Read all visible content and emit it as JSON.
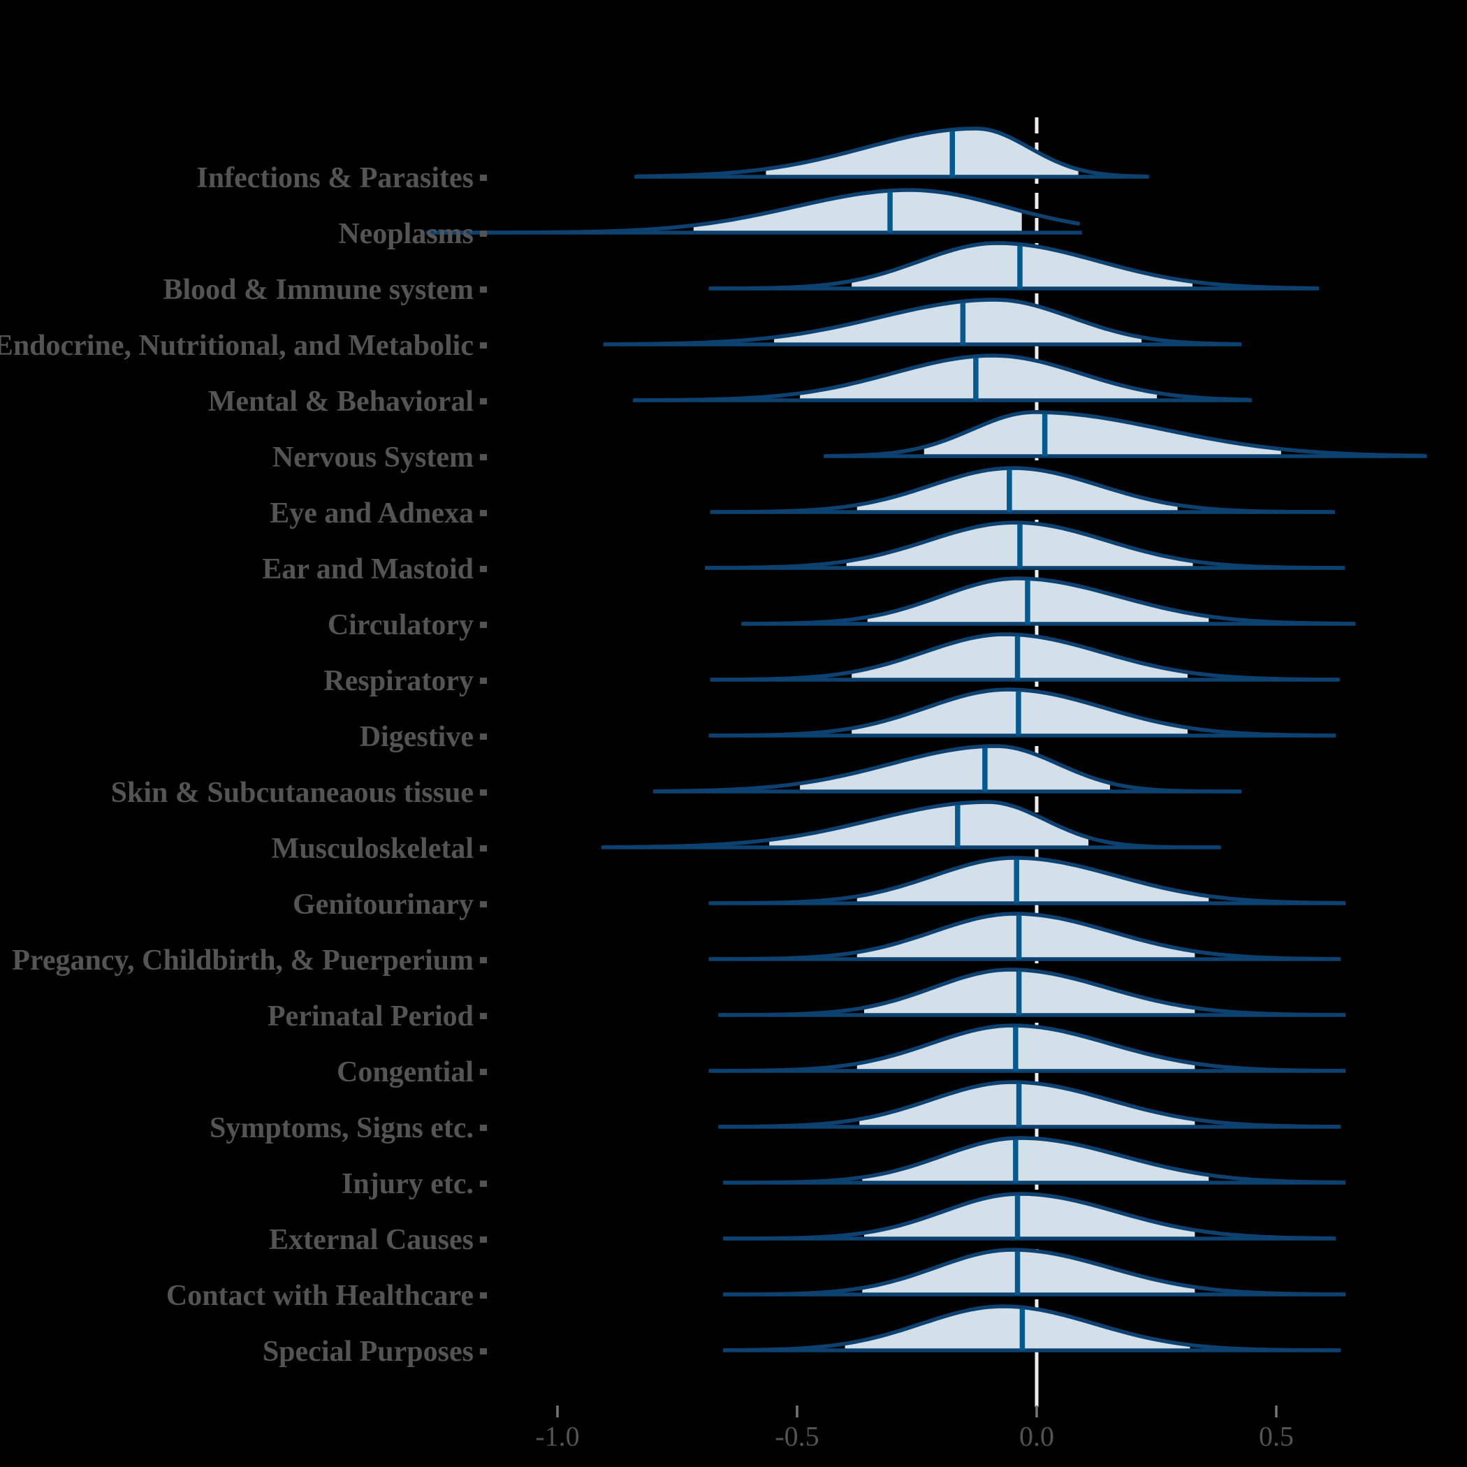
{
  "chart_data": {
    "type": "ridgeline_density",
    "title": "",
    "xlabel": "",
    "x_axis": {
      "ticks": [
        -1.0,
        -0.5,
        0.0,
        0.5
      ],
      "tick_labels": [
        "-1.0",
        "-0.5",
        "0.0",
        "0.5"
      ],
      "range": [
        -1.35,
        0.95
      ],
      "reference_line_x": 0.0
    },
    "legend": "none",
    "grid": "off",
    "series": [
      {
        "label": "Infections & Parasites",
        "median": -0.176,
        "q_lo": -0.565,
        "q_hi": 0.087,
        "range_lo": -0.835,
        "range_hi": 0.23,
        "mode": -0.126,
        "sigma_l": 0.23,
        "sigma_r": 0.11,
        "peak": 69
      },
      {
        "label": "Neoplasms",
        "median": -0.306,
        "q_lo": -0.716,
        "q_hi": -0.031,
        "range_lo": -1.27,
        "range_hi": 0.09,
        "mode": -0.265,
        "sigma_l": 0.24,
        "sigma_r": 0.2,
        "peak": 61
      },
      {
        "label": "Blood & Immune system",
        "median": -0.035,
        "q_lo": -0.386,
        "q_hi": 0.325,
        "range_lo": -0.68,
        "range_hi": 0.585,
        "mode": -0.083,
        "sigma_l": 0.16,
        "sigma_r": 0.21,
        "peak": 65
      },
      {
        "label": "Endocrine, Nutritional, and Metabolic",
        "median": -0.154,
        "q_lo": -0.548,
        "q_hi": 0.219,
        "range_lo": -0.9,
        "range_hi": 0.423,
        "mode": -0.088,
        "sigma_l": 0.24,
        "sigma_r": 0.16,
        "peak": 64
      },
      {
        "label": "Mental & Behavioral",
        "median": -0.127,
        "q_lo": -0.494,
        "q_hi": 0.251,
        "range_lo": -0.838,
        "range_hi": 0.445,
        "mode": -0.09,
        "sigma_l": 0.21,
        "sigma_r": 0.18,
        "peak": 64
      },
      {
        "label": "Nervous System",
        "median": 0.017,
        "q_lo": -0.235,
        "q_hi": 0.51,
        "range_lo": -0.44,
        "range_hi": 0.81,
        "mode": -0.005,
        "sigma_l": 0.13,
        "sigma_r": 0.27,
        "peak": 63
      },
      {
        "label": "Eye and Adnexa",
        "median": -0.057,
        "q_lo": -0.375,
        "q_hi": 0.294,
        "range_lo": -0.677,
        "range_hi": 0.618,
        "mode": -0.05,
        "sigma_l": 0.17,
        "sigma_r": 0.18,
        "peak": 63
      },
      {
        "label": "Ear and Mastoid",
        "median": -0.035,
        "q_lo": -0.397,
        "q_hi": 0.326,
        "range_lo": -0.688,
        "range_hi": 0.639,
        "mode": -0.045,
        "sigma_l": 0.18,
        "sigma_r": 0.19,
        "peak": 65
      },
      {
        "label": "Circulatory",
        "median": -0.019,
        "q_lo": -0.353,
        "q_hi": 0.359,
        "range_lo": -0.612,
        "range_hi": 0.661,
        "mode": -0.04,
        "sigma_l": 0.16,
        "sigma_r": 0.21,
        "peak": 65
      },
      {
        "label": "Respiratory",
        "median": -0.04,
        "q_lo": -0.386,
        "q_hi": 0.315,
        "range_lo": -0.677,
        "range_hi": 0.628,
        "mode": -0.065,
        "sigma_l": 0.17,
        "sigma_r": 0.2,
        "peak": 65
      },
      {
        "label": "Digestive",
        "median": -0.038,
        "q_lo": -0.386,
        "q_hi": 0.315,
        "range_lo": -0.68,
        "range_hi": 0.62,
        "mode": -0.06,
        "sigma_l": 0.17,
        "sigma_r": 0.2,
        "peak": 66
      },
      {
        "label": "Skin & Subcutaneaous tissue",
        "median": -0.108,
        "q_lo": -0.494,
        "q_hi": 0.153,
        "range_lo": -0.796,
        "range_hi": 0.423,
        "mode": -0.085,
        "sigma_l": 0.22,
        "sigma_r": 0.13,
        "peak": 65
      },
      {
        "label": "Musculoskeletal",
        "median": -0.165,
        "q_lo": -0.558,
        "q_hi": 0.108,
        "range_lo": -0.904,
        "range_hi": 0.38,
        "mode": -0.102,
        "sigma_l": 0.24,
        "sigma_r": 0.12,
        "peak": 65
      },
      {
        "label": "Genitourinary",
        "median": -0.042,
        "q_lo": -0.375,
        "q_hi": 0.359,
        "range_lo": -0.68,
        "range_hi": 0.64,
        "mode": -0.045,
        "sigma_l": 0.17,
        "sigma_r": 0.21,
        "peak": 65
      },
      {
        "label": "Pregancy, Childbirth, & Puerperium",
        "median": -0.037,
        "q_lo": -0.375,
        "q_hi": 0.33,
        "range_lo": -0.68,
        "range_hi": 0.63,
        "mode": -0.045,
        "sigma_l": 0.17,
        "sigma_r": 0.2,
        "peak": 65
      },
      {
        "label": "Perinatal Period",
        "median": -0.037,
        "q_lo": -0.36,
        "q_hi": 0.33,
        "range_lo": -0.66,
        "range_hi": 0.64,
        "mode": -0.055,
        "sigma_l": 0.16,
        "sigma_r": 0.2,
        "peak": 65
      },
      {
        "label": "Congential",
        "median": -0.044,
        "q_lo": -0.375,
        "q_hi": 0.33,
        "range_lo": -0.68,
        "range_hi": 0.64,
        "mode": -0.05,
        "sigma_l": 0.17,
        "sigma_r": 0.2,
        "peak": 65
      },
      {
        "label": "Symptoms, Signs etc.",
        "median": -0.037,
        "q_lo": -0.37,
        "q_hi": 0.33,
        "range_lo": -0.66,
        "range_hi": 0.63,
        "mode": -0.05,
        "sigma_l": 0.17,
        "sigma_r": 0.2,
        "peak": 64
      },
      {
        "label": "Injury etc.",
        "median": -0.044,
        "q_lo": -0.364,
        "q_hi": 0.359,
        "range_lo": -0.65,
        "range_hi": 0.64,
        "mode": -0.035,
        "sigma_l": 0.16,
        "sigma_r": 0.21,
        "peak": 64
      },
      {
        "label": "External Causes",
        "median": -0.04,
        "q_lo": -0.36,
        "q_hi": 0.33,
        "range_lo": -0.65,
        "range_hi": 0.62,
        "mode": -0.035,
        "sigma_l": 0.16,
        "sigma_r": 0.2,
        "peak": 64
      },
      {
        "label": "Contact with Healthcare",
        "median": -0.04,
        "q_lo": -0.364,
        "q_hi": 0.33,
        "range_lo": -0.65,
        "range_hi": 0.64,
        "mode": -0.05,
        "sigma_l": 0.16,
        "sigma_r": 0.2,
        "peak": 64
      },
      {
        "label": "Special Purposes",
        "median": -0.03,
        "q_lo": -0.4,
        "q_hi": 0.32,
        "range_lo": -0.65,
        "range_hi": 0.63,
        "mode": -0.07,
        "sigma_l": 0.17,
        "sigma_r": 0.19,
        "peak": 63
      }
    ]
  },
  "colors": {
    "background": "#000000",
    "density_fill": "#d3dfe9",
    "density_outline": "#0d4170",
    "median_line": "#04598f",
    "category_label": "#545454",
    "tick_mark": "#757575",
    "tick_label": "#545454",
    "reference_line": "#ededed"
  }
}
